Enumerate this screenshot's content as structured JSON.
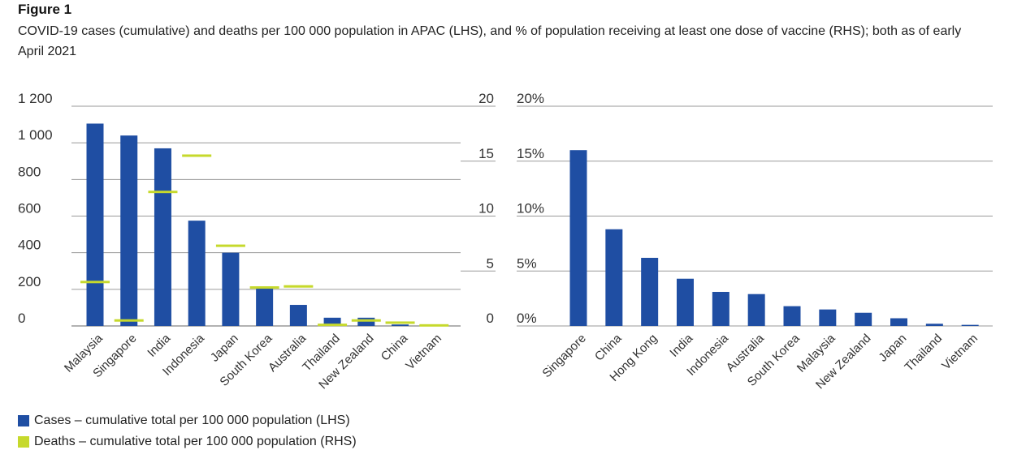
{
  "figure_label": "Figure 1",
  "caption": "COVID-19 cases (cumulative) and deaths per 100 000 population in APAC (LHS), and % of population receiving at least one dose of vaccine (RHS); both as of early April 2021",
  "colors": {
    "cases": "#1f4ea3",
    "deaths": "#c6d92c",
    "vaccine": "#1f4ea3",
    "grid": "#9a9a9a"
  },
  "legend": {
    "cases": "Cases – cumulative total per 100 000 population (LHS)",
    "deaths": "Deaths – cumulative total per 100 000 population (RHS)"
  },
  "chart_data": [
    {
      "type": "bar",
      "title": "",
      "categories": [
        "Malaysia",
        "Singapore",
        "India",
        "Indonesia",
        "Japan",
        "South Korea",
        "Australia",
        "Thailand",
        "New Zealand",
        "China",
        "Vietnam"
      ],
      "series": [
        {
          "name": "Cases – cumulative total per 100 000 population (LHS)",
          "axis": "left",
          "mark": "bar",
          "values": [
            1105,
            1040,
            970,
            575,
            400,
            215,
            115,
            45,
            45,
            8,
            2
          ]
        },
        {
          "name": "Deaths – cumulative total per 100 000 population (RHS)",
          "axis": "right",
          "mark": "dash",
          "values": [
            4.0,
            0.5,
            12.2,
            15.5,
            7.3,
            3.5,
            3.6,
            0.1,
            0.5,
            0.3,
            0.05
          ]
        }
      ],
      "ylim_left": [
        0,
        1200
      ],
      "ylim_right": [
        0,
        20
      ],
      "yticks_left": [
        "0",
        "200",
        "400",
        "600",
        "800",
        "1 000",
        "1 200"
      ],
      "yticks_right": [
        "0",
        "5",
        "10",
        "15",
        "20"
      ],
      "grid": true
    },
    {
      "type": "bar",
      "title": "",
      "categories": [
        "Singapore",
        "China",
        "Hong Kong",
        "India",
        "Indonesia",
        "Australia",
        "South Korea",
        "Malaysia",
        "New Zealand",
        "Japan",
        "Thailand",
        "Vietnam"
      ],
      "series": [
        {
          "name": "% of population receiving at least one dose of vaccine",
          "axis": "left",
          "mark": "bar",
          "values": [
            16.0,
            8.8,
            6.2,
            4.3,
            3.1,
            2.9,
            1.8,
            1.5,
            1.2,
            0.7,
            0.2,
            0.1
          ]
        }
      ],
      "ylim": [
        0,
        20
      ],
      "yticks": [
        "0%",
        "5%",
        "10%",
        "15%",
        "20%"
      ],
      "grid": true
    }
  ]
}
